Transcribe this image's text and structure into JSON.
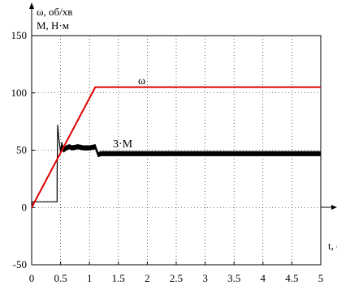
{
  "chart_data": {
    "type": "line",
    "ylabel_line1": "ω, об/хв",
    "ylabel_line2": "M, Н·м",
    "xlabel": "t, c",
    "xlim": [
      0,
      5
    ],
    "ylim": [
      -50,
      150
    ],
    "grid": "dotted",
    "xticks": [
      {
        "v": 0,
        "label": "0"
      },
      {
        "v": 0.5,
        "label": "0.5"
      },
      {
        "v": 1,
        "label": "1"
      },
      {
        "v": 1.5,
        "label": "1.5"
      },
      {
        "v": 2,
        "label": "2"
      },
      {
        "v": 2.5,
        "label": "2.5"
      },
      {
        "v": 3,
        "label": "3"
      },
      {
        "v": 3.5,
        "label": "3.5"
      },
      {
        "v": 4,
        "label": "4"
      },
      {
        "v": 4.5,
        "label": "4.5"
      },
      {
        "v": 5,
        "label": "5"
      }
    ],
    "yticks": [
      {
        "v": -50,
        "label": "-50"
      },
      {
        "v": 0,
        "label": "0"
      },
      {
        "v": 50,
        "label": "50"
      },
      {
        "v": 100,
        "label": "100"
      },
      {
        "v": 150,
        "label": "150"
      }
    ],
    "series": [
      {
        "name": "ω",
        "color": "#e00000",
        "x": [
          0,
          1.1,
          5
        ],
        "y": [
          0,
          105,
          105
        ]
      },
      {
        "name": "3·M",
        "color": "#000000",
        "x": [
          0,
          0.01,
          0.44,
          0.44,
          0.45,
          0.47,
          0.5,
          0.52,
          0.55,
          0.6,
          0.65,
          0.7,
          0.8,
          0.9,
          1.0,
          1.1,
          1.15,
          1.2,
          1.5,
          2,
          2.5,
          3,
          3.5,
          4,
          4.5,
          5
        ],
        "y": [
          0,
          5,
          5,
          30,
          72,
          60,
          48,
          55,
          50,
          52,
          53,
          52,
          53,
          52,
          52,
          53,
          46,
          47,
          47,
          47,
          47,
          47,
          47,
          47,
          47,
          47
        ]
      }
    ],
    "annotations": [
      {
        "text": "ω",
        "x": 2.3,
        "y": 114
      },
      {
        "text": "3·M",
        "x": 1.75,
        "y": 65
      }
    ]
  }
}
